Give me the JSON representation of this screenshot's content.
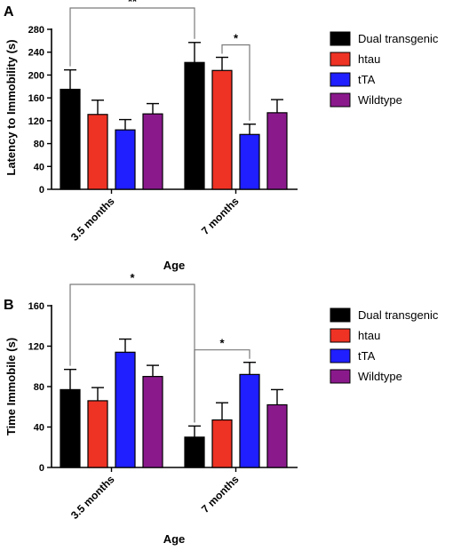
{
  "chart_data": [
    {
      "type": "bar",
      "panel": "A",
      "categories": [
        "3.5 months",
        "7 months"
      ],
      "series": [
        {
          "name": "Dual transgenic",
          "color": "#000000",
          "values": [
            175,
            222
          ],
          "errors": [
            34,
            35
          ]
        },
        {
          "name": "htau",
          "color": "#ee3224",
          "values": [
            131,
            208
          ],
          "errors": [
            25,
            23
          ]
        },
        {
          "name": "tTA",
          "color": "#1f1fff",
          "values": [
            104,
            96
          ],
          "errors": [
            18,
            18
          ]
        },
        {
          "name": "Wildtype",
          "color": "#8a1a8c",
          "values": [
            132,
            134
          ],
          "errors": [
            18,
            23
          ]
        }
      ],
      "xlabel": "Age",
      "ylabel": "Latency to Immobility (s)",
      "ylim": [
        0,
        280
      ],
      "yticks": [
        0,
        40,
        80,
        120,
        160,
        200,
        240,
        280
      ],
      "legend": "right",
      "significance": [
        {
          "label": "**",
          "from": {
            "category": 0,
            "series": 0
          },
          "to": {
            "category": 1,
            "series": 0
          },
          "level": 1
        },
        {
          "label": "*",
          "from": {
            "category": 1,
            "series": 1
          },
          "to": {
            "category": 1,
            "series": 2
          },
          "level": 0
        }
      ]
    },
    {
      "type": "bar",
      "panel": "B",
      "categories": [
        "3.5 months",
        "7 months"
      ],
      "series": [
        {
          "name": "Dual transgenic",
          "color": "#000000",
          "values": [
            77,
            30
          ],
          "errors": [
            20,
            11
          ]
        },
        {
          "name": "htau",
          "color": "#ee3224",
          "values": [
            66,
            47
          ],
          "errors": [
            13,
            17
          ]
        },
        {
          "name": "tTA",
          "color": "#1f1fff",
          "values": [
            114,
            92
          ],
          "errors": [
            13,
            12
          ]
        },
        {
          "name": "Wildtype",
          "color": "#8a1a8c",
          "values": [
            90,
            62
          ],
          "errors": [
            11,
            15
          ]
        }
      ],
      "xlabel": "Age",
      "ylabel": "Time Immobile (s)",
      "ylim": [
        0,
        160
      ],
      "yticks": [
        0,
        40,
        80,
        120,
        160
      ],
      "legend": "right",
      "significance": [
        {
          "label": "*",
          "from": {
            "category": 0,
            "series": 0
          },
          "to": {
            "category": 1,
            "series": 0
          },
          "level": 1
        },
        {
          "label": "*",
          "from": {
            "category": 1,
            "series": 0
          },
          "to": {
            "category": 1,
            "series": 2
          },
          "level": 0
        }
      ]
    }
  ]
}
